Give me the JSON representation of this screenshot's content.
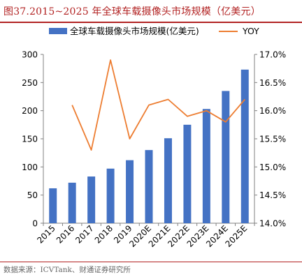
{
  "header": {
    "title": "图37.2015~2025 年全球车载摄像头市场规模（亿美元）"
  },
  "footer": {
    "source": "数据来源：ICVTank、财通证券研究所"
  },
  "colors": {
    "bar": "#4472C4",
    "line": "#ED7D31",
    "accent": "#B22222"
  },
  "chart_data": {
    "type": "bar",
    "categories": [
      "2015",
      "2016",
      "2017",
      "2018",
      "2019",
      "2020E",
      "2021E",
      "2022E",
      "2023E",
      "2024E",
      "2025E"
    ],
    "series": [
      {
        "name": "全球车载摄像头市场规模(亿美元)",
        "type": "bar",
        "axis": "left",
        "values": [
          62,
          72,
          83,
          97,
          112,
          130,
          151,
          175,
          203,
          235,
          273
        ]
      },
      {
        "name": "YOY",
        "type": "line",
        "axis": "right",
        "values": [
          null,
          16.1,
          15.3,
          16.9,
          15.5,
          16.1,
          16.2,
          15.9,
          16.0,
          15.8,
          16.2
        ]
      }
    ],
    "y_left": {
      "ylim": [
        0,
        300
      ],
      "ticks": [
        "0",
        "50",
        "100",
        "150",
        "200",
        "250",
        "300"
      ]
    },
    "y_right": {
      "ylim": [
        14.0,
        17.0
      ],
      "ticks": [
        "14.0%",
        "14.5%",
        "15.0%",
        "15.5%",
        "16.0%",
        "16.5%",
        "17.0%"
      ]
    },
    "grid": false,
    "legend_position": "top"
  }
}
